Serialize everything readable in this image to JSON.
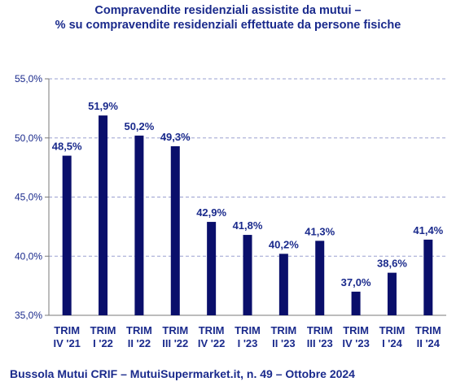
{
  "title_line1": "Compravendite residenziali assistite da mutui –",
  "title_line2": "% su compravendite residenziali effettuate da persone fisiche",
  "footer": "Bussola Mutui CRIF – MutuiSupermarket.it, n. 49 – Ottobre 2024",
  "colors": {
    "bar": "#0a0f6b",
    "text": "#1a2a8c",
    "grid": "#9aa0d0",
    "axis": "#7a7a7a"
  },
  "chart_data": {
    "type": "bar",
    "categories": [
      [
        "TRIM",
        "IV '21"
      ],
      [
        "TRIM",
        "I '22"
      ],
      [
        "TRIM",
        "II '22"
      ],
      [
        "TRIM",
        "III '22"
      ],
      [
        "TRIM",
        "IV '22"
      ],
      [
        "TRIM",
        "I '23"
      ],
      [
        "TRIM",
        "II '23"
      ],
      [
        "TRIM",
        "III '23"
      ],
      [
        "TRIM",
        "IV '23"
      ],
      [
        "TRIM",
        "I '24"
      ],
      [
        "TRIM",
        "II '24"
      ]
    ],
    "values": [
      48.5,
      51.9,
      50.2,
      49.3,
      42.9,
      41.8,
      40.2,
      41.3,
      37.0,
      38.6,
      41.4
    ],
    "data_labels": [
      "48,5%",
      "51,9%",
      "50,2%",
      "49,3%",
      "42,9%",
      "41,8%",
      "40,2%",
      "41,3%",
      "37,0%",
      "38,6%",
      "41,4%"
    ],
    "yticks": [
      35,
      40,
      45,
      50,
      55
    ],
    "ytick_labels": [
      "35,0%",
      "40,0%",
      "45,0%",
      "50,0%",
      "55,0%"
    ],
    "ylim": [
      35,
      55
    ],
    "grid": true,
    "legend": "none",
    "xlabel": "",
    "ylabel": ""
  }
}
